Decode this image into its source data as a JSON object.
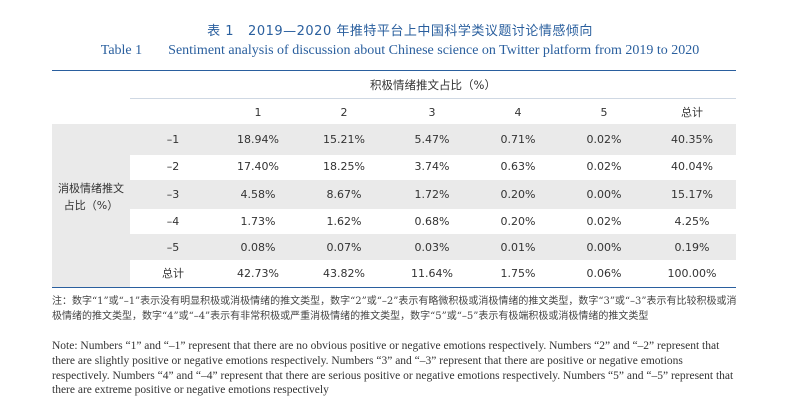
{
  "title": {
    "zh_label": "表 1",
    "zh_text": "2019—2020 年推特平台上中国科学类议题讨论情感倾向",
    "en_label": "Table 1",
    "en_text": "Sentiment analysis of discussion about Chinese science on Twitter platform from 2019 to 2020"
  },
  "table": {
    "col_group_header": "积极情绪推文占比（%）",
    "row_group_header": [
      "消极情绪推文",
      "占比（%）"
    ],
    "columns": [
      "1",
      "2",
      "3",
      "4",
      "5",
      "总计"
    ],
    "rows": [
      {
        "label": "–1",
        "cells": [
          "18.94%",
          "15.21%",
          "5.47%",
          "0.71%",
          "0.02%",
          "40.35%"
        ]
      },
      {
        "label": "–2",
        "cells": [
          "17.40%",
          "18.25%",
          "3.74%",
          "0.63%",
          "0.02%",
          "40.04%"
        ]
      },
      {
        "label": "–3",
        "cells": [
          "4.58%",
          "8.67%",
          "1.72%",
          "0.20%",
          "0.00%",
          "15.17%"
        ]
      },
      {
        "label": "–4",
        "cells": [
          "1.73%",
          "1.62%",
          "0.68%",
          "0.20%",
          "0.02%",
          "4.25%"
        ]
      },
      {
        "label": "–5",
        "cells": [
          "0.08%",
          "0.07%",
          "0.03%",
          "0.01%",
          "0.00%",
          "0.19%"
        ]
      },
      {
        "label": "总计",
        "cells": [
          "42.73%",
          "43.82%",
          "11.64%",
          "1.75%",
          "0.06%",
          "100.00%"
        ]
      }
    ]
  },
  "notes": {
    "zh": "注：数字“1”或“–1”表示没有明显积极或消极情绪的推文类型，数字“2”或“–2”表示有略微积极或消极情绪的推文类型，数字“3”或“–3”表示有比较积极或消极情绪的推文类型，数字“4”或“–4”表示有非常积极或严重消极情绪的推文类型，数字“5”或“–5”表示有极端积极或消极情绪的推文类型",
    "en": "Note: Numbers “1” and “–1” represent that there are no obvious positive or negative emotions respectively. Numbers “2” and “–2” represent that there are slightly positive or negative emotions respectively. Numbers “3” and “–3” represent that there are positive or negative emotions respectively. Numbers “4” and “–4” represent that there are serious positive or negative emotions respectively. Numbers “5” and “–5” represent that there are extreme positive or negative emotions respectively"
  }
}
